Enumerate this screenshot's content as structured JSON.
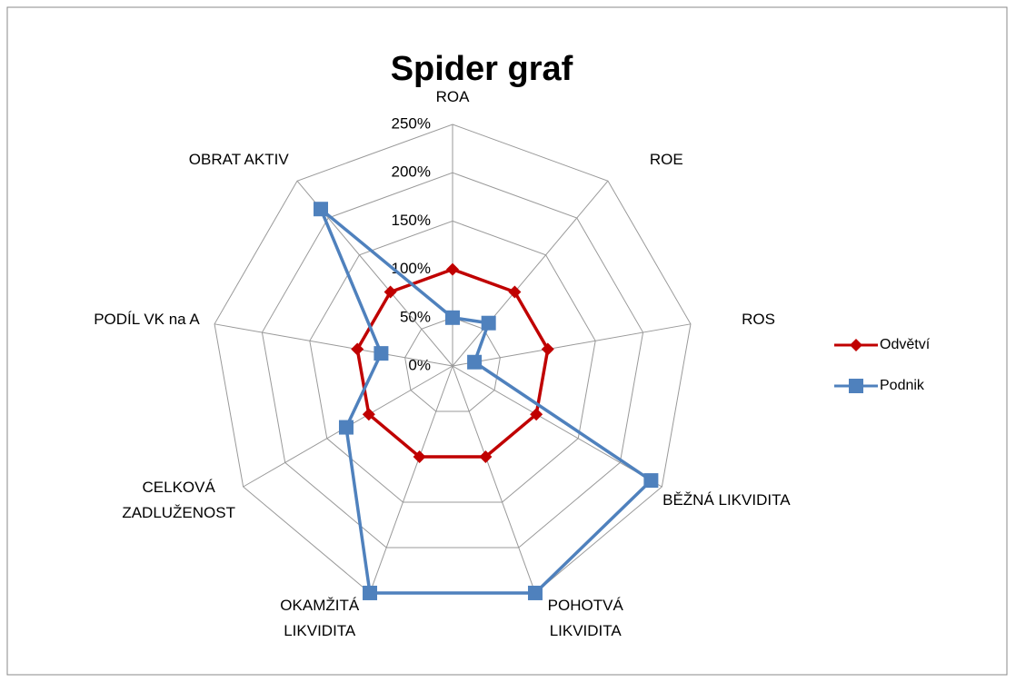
{
  "chart_data": {
    "type": "radar",
    "title": "Spider graf",
    "categories": [
      "ROA",
      "ROE",
      "ROS",
      "BĚŽNÁ LIKVIDITA",
      "POHOTVÁ\nLIKVIDITA",
      "OKAMŽITÁ\nLIKVIDITA",
      "CELKOVÁ\nZADLUŽENOST",
      "PODÍL VK na A",
      "OBRAT AKTIV"
    ],
    "series": [
      {
        "name": "Odvětví",
        "color": "#c00000",
        "marker": "diamond",
        "values": [
          100,
          100,
          100,
          100,
          100,
          100,
          100,
          100,
          100
        ]
      },
      {
        "name": "Podnik",
        "color": "#4f81bd",
        "marker": "square",
        "values": [
          50,
          58,
          23,
          237,
          250,
          250,
          127,
          75,
          212
        ]
      }
    ],
    "ylim": [
      0,
      250
    ],
    "yticks": [
      {
        "value": 0,
        "label": "0%"
      },
      {
        "value": 50,
        "label": "50%"
      },
      {
        "value": 100,
        "label": "100%"
      },
      {
        "value": 150,
        "label": "150%"
      },
      {
        "value": 200,
        "label": "200%"
      },
      {
        "value": 250,
        "label": "250%"
      }
    ],
    "grid": true,
    "legend": "right"
  }
}
